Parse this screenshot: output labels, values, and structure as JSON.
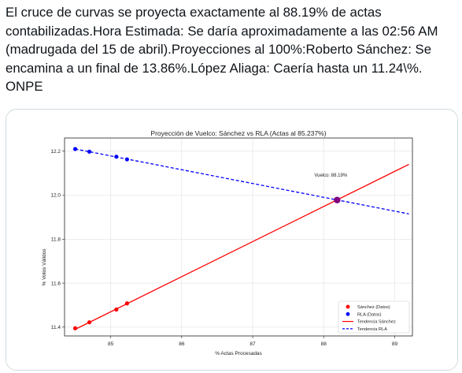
{
  "tweet": {
    "text": "El cruce de curvas se proyecta exactamente al 88.19% de actas contabilizadas.Hora Estimada: Se daría aproximadamente a las 02:56 AM (madrugada del 15 de abril).Proyecciones al 100%:Roberto Sánchez: Se encamina a un final de 13.86%.López Aliaga: Caería hasta un 11.24\\%. ONPE"
  },
  "chart_data": {
    "type": "line",
    "title": "Proyección de Vuelco: Sánchez vs RLA (Actas al 85.237%)",
    "xlabel": "% Actas Procesadas",
    "ylabel": "% Votos Válidos",
    "xlim": [
      84.35,
      89.25
    ],
    "ylim": [
      11.36,
      12.26
    ],
    "xticks": [
      85,
      86,
      87,
      88,
      89
    ],
    "yticks": [
      11.4,
      11.6,
      11.8,
      12.0,
      12.2
    ],
    "xtick_labels": [
      "85",
      "86",
      "87",
      "88",
      "89"
    ],
    "ytick_labels": [
      "11.4",
      "11.6",
      "11.8",
      "12.0",
      "12.2"
    ],
    "grid": true,
    "legend_position": "bottom-right",
    "colors": {
      "sanchez": "#ff0000",
      "rla": "#0000ff",
      "crossover": "#800080"
    },
    "series": [
      {
        "name": "Sánchez (Datos)",
        "kind": "scatter",
        "color": "#ff0000",
        "x": [
          84.5,
          84.7,
          85.08,
          85.23
        ],
        "y": [
          11.395,
          11.422,
          11.48,
          11.508
        ]
      },
      {
        "name": "RLA (Datos)",
        "kind": "scatter",
        "color": "#0000ff",
        "x": [
          84.5,
          84.7,
          85.08,
          85.23
        ],
        "y": [
          12.21,
          12.198,
          12.175,
          12.163
        ]
      },
      {
        "name": "Tendencia Sánchez",
        "kind": "line",
        "style": "solid",
        "color": "#ff0000",
        "x": [
          84.5,
          89.2
        ],
        "y": [
          11.39,
          12.14
        ]
      },
      {
        "name": "Tendencia RLA",
        "kind": "line",
        "style": "dashed",
        "color": "#0000ff",
        "x": [
          84.5,
          89.2
        ],
        "y": [
          12.21,
          11.915
        ]
      }
    ],
    "crossover": {
      "x": 88.19,
      "y": 11.978
    },
    "annotation": {
      "text": "Vuelco: 88.19%",
      "x": 88.1,
      "y": 12.085
    }
  }
}
